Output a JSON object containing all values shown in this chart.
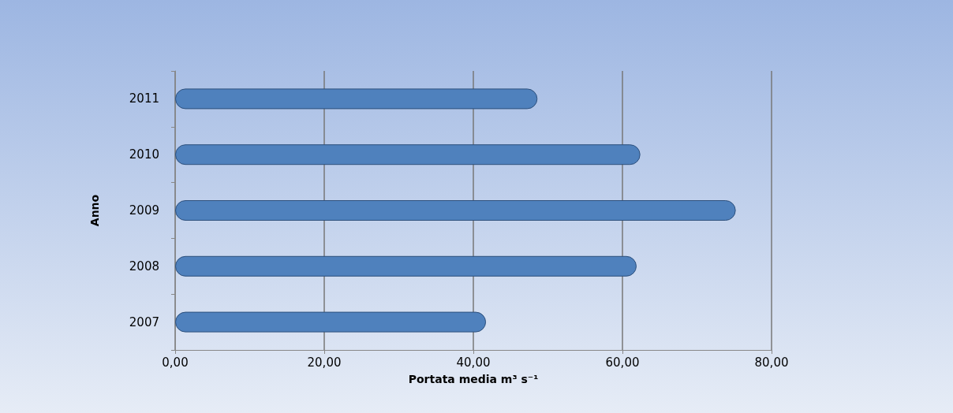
{
  "chart_data": {
    "type": "bar",
    "orientation": "horizontal",
    "xlabel": "Portata media m³ s⁻¹",
    "ylabel": "Anno",
    "categories": [
      "2011",
      "2010",
      "2009",
      "2008",
      "2007"
    ],
    "values": [
      48.6,
      62.4,
      75.2,
      61.9,
      41.7
    ],
    "color": "#4f81bd",
    "xlim": [
      0,
      80
    ],
    "xticks": [
      {
        "value": 0,
        "label": "0,00"
      },
      {
        "value": 20,
        "label": "20,00"
      },
      {
        "value": 40,
        "label": "40,00"
      },
      {
        "value": 60,
        "label": "60,00"
      },
      {
        "value": 80,
        "label": "80,00"
      }
    ],
    "grid": "x"
  }
}
